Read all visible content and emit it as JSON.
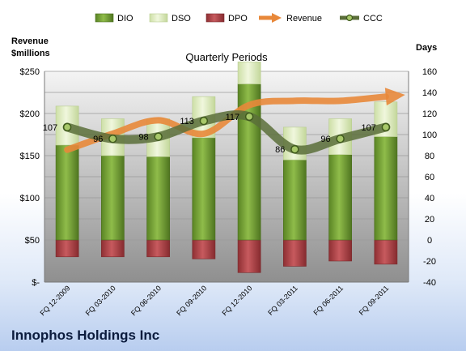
{
  "company": "Innophos Holdings Inc",
  "chart_data": {
    "type": "bar",
    "title": "Quarterly Periods",
    "left_axis_title": [
      "Revenue",
      "$millions"
    ],
    "right_axis_title": "Days",
    "categories": [
      "FQ 12-2009",
      "FQ 03-2010",
      "FQ 06-2010",
      "FQ 09-2010",
      "FQ 12-2010",
      "FQ 03-2011",
      "FQ 06-2011",
      "FQ 09-2011"
    ],
    "left_axis": {
      "min": 0,
      "max": 250,
      "step": 50,
      "tick_labels": [
        "$-",
        "$50",
        "$100",
        "$150",
        "$200",
        "$250"
      ]
    },
    "right_axis": {
      "min": -40,
      "max": 160,
      "step": 20
    },
    "legend_position": "top",
    "grid": true,
    "series": [
      {
        "name": "DIO",
        "type": "bar-stacked",
        "axis": "right",
        "color": "#6f9a30",
        "values": [
          90,
          80,
          79,
          97,
          148,
          76,
          81,
          98
        ]
      },
      {
        "name": "DSO",
        "type": "bar-stacked",
        "axis": "right",
        "color": "#dce9bc",
        "values": [
          37,
          35,
          36,
          39,
          21,
          31,
          34,
          33
        ]
      },
      {
        "name": "DPO",
        "type": "bar-negative",
        "axis": "right",
        "color": "#b5484b",
        "values": [
          -16,
          -16,
          -16,
          -18,
          -31,
          -25,
          -20,
          -23
        ]
      },
      {
        "name": "Revenue",
        "type": "line-arrow",
        "axis": "left",
        "color": "#e8883a",
        "values": [
          157,
          176,
          192,
          176,
          210,
          215,
          215,
          220
        ]
      },
      {
        "name": "CCC",
        "type": "line",
        "axis": "right",
        "color": "#5b6e3a",
        "values": [
          107,
          96,
          98,
          113,
          117,
          86,
          96,
          107
        ],
        "labels": [
          "107",
          "96",
          "98",
          "113",
          "117",
          "86",
          "96",
          "107"
        ]
      }
    ]
  }
}
